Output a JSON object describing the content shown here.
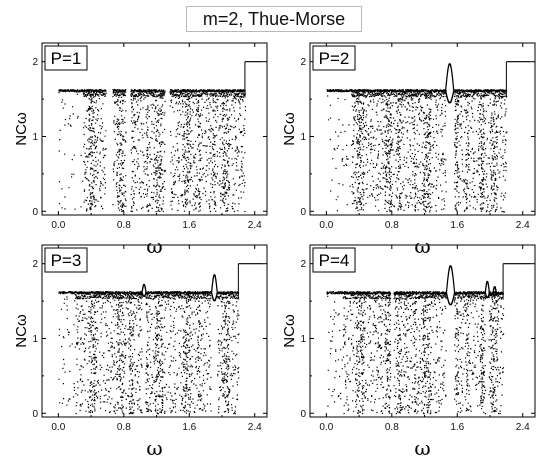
{
  "title": "m=2, Thue-Morse",
  "chart_data": [
    {
      "type": "scatter",
      "panel_label": "P=1",
      "xlabel": "ω",
      "ylabel": "NCω",
      "xlim": [
        -0.2,
        2.55
      ],
      "ylim": [
        -0.05,
        2.25
      ],
      "xticks": [
        "0.0",
        "0.8",
        "1.6",
        "2.4"
      ],
      "yticks": [
        "0",
        "1",
        "2"
      ],
      "plateau_level": 1.62,
      "band_end": 2.28,
      "upper_branch": {
        "x": [
          2.28,
          2.5
        ],
        "y": 2.0
      },
      "sparse_region_end": 0.3,
      "gaps": [
        [
          0.58,
          0.66
        ],
        [
          0.82,
          0.88
        ],
        [
          1.3,
          1.36
        ]
      ],
      "peaks": []
    },
    {
      "type": "scatter",
      "panel_label": "P=2",
      "xlabel": "ω",
      "ylabel": "NCω",
      "xlim": [
        -0.2,
        2.55
      ],
      "ylim": [
        -0.05,
        2.25
      ],
      "xticks": [
        "0.0",
        "0.8",
        "1.6",
        "2.4"
      ],
      "yticks": [
        "0",
        "1",
        "2"
      ],
      "plateau_level": 1.62,
      "band_end": 2.2,
      "upper_branch": {
        "x": [
          2.2,
          2.5
        ],
        "y": 2.0
      },
      "sparse_region_end": 0.3,
      "gaps": [
        [
          1.46,
          1.56
        ]
      ],
      "peaks": [
        {
          "x": 1.5,
          "y": 1.98,
          "width": 0.1
        }
      ]
    },
    {
      "type": "scatter",
      "panel_label": "P=3",
      "xlabel": "ω",
      "ylabel": "NCω",
      "xlim": [
        -0.2,
        2.55
      ],
      "ylim": [
        -0.05,
        2.25
      ],
      "xticks": [
        "0.0",
        "0.8",
        "1.6",
        "2.4"
      ],
      "yticks": [
        "0",
        "1",
        "2"
      ],
      "plateau_level": 1.62,
      "band_end": 2.2,
      "upper_branch": {
        "x": [
          2.2,
          2.5
        ],
        "y": 2.0
      },
      "sparse_region_end": 0.2,
      "gaps": [
        [
          1.02,
          1.06
        ],
        [
          1.86,
          1.94
        ]
      ],
      "peaks": [
        {
          "x": 1.04,
          "y": 1.73,
          "width": 0.05
        },
        {
          "x": 1.9,
          "y": 1.86,
          "width": 0.07
        }
      ]
    },
    {
      "type": "scatter",
      "panel_label": "P=4",
      "xlabel": "ω",
      "ylabel": "NCω",
      "xlim": [
        -0.2,
        2.55
      ],
      "ylim": [
        -0.05,
        2.25
      ],
      "xticks": [
        "0.0",
        "0.8",
        "1.6",
        "2.4"
      ],
      "yticks": [
        "0",
        "1",
        "2"
      ],
      "plateau_level": 1.62,
      "band_end": 2.16,
      "upper_branch": {
        "x": [
          2.16,
          2.5
        ],
        "y": 2.0
      },
      "sparse_region_end": 0.2,
      "gaps": [
        [
          0.78,
          0.82
        ],
        [
          1.46,
          1.56
        ],
        [
          1.94,
          1.98
        ]
      ],
      "peaks": [
        {
          "x": 1.51,
          "y": 1.98,
          "width": 0.1
        },
        {
          "x": 1.96,
          "y": 1.77,
          "width": 0.05
        },
        {
          "x": 2.05,
          "y": 1.7,
          "width": 0.04
        }
      ]
    }
  ]
}
